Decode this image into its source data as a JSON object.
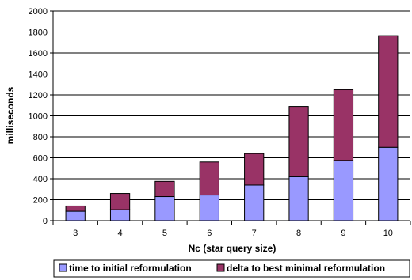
{
  "chart_data": {
    "type": "bar",
    "stacked": true,
    "title": "",
    "xlabel": "Nc (star query size)",
    "ylabel": "milliseconds",
    "categories": [
      "3",
      "4",
      "5",
      "6",
      "7",
      "8",
      "9",
      "10"
    ],
    "ylim": [
      0,
      2000
    ],
    "yticks": [
      0,
      200,
      400,
      600,
      800,
      1000,
      1200,
      1400,
      1600,
      1800,
      2000
    ],
    "grid": true,
    "legend_position": "bottom",
    "series": [
      {
        "name": "time to initial reformulation",
        "color": "#9999ff",
        "values": [
          90,
          105,
          230,
          245,
          340,
          420,
          575,
          700
        ]
      },
      {
        "name": "delta to best minimal reformulation",
        "color": "#993366",
        "values": [
          50,
          155,
          145,
          315,
          300,
          670,
          675,
          1065
        ]
      }
    ]
  }
}
